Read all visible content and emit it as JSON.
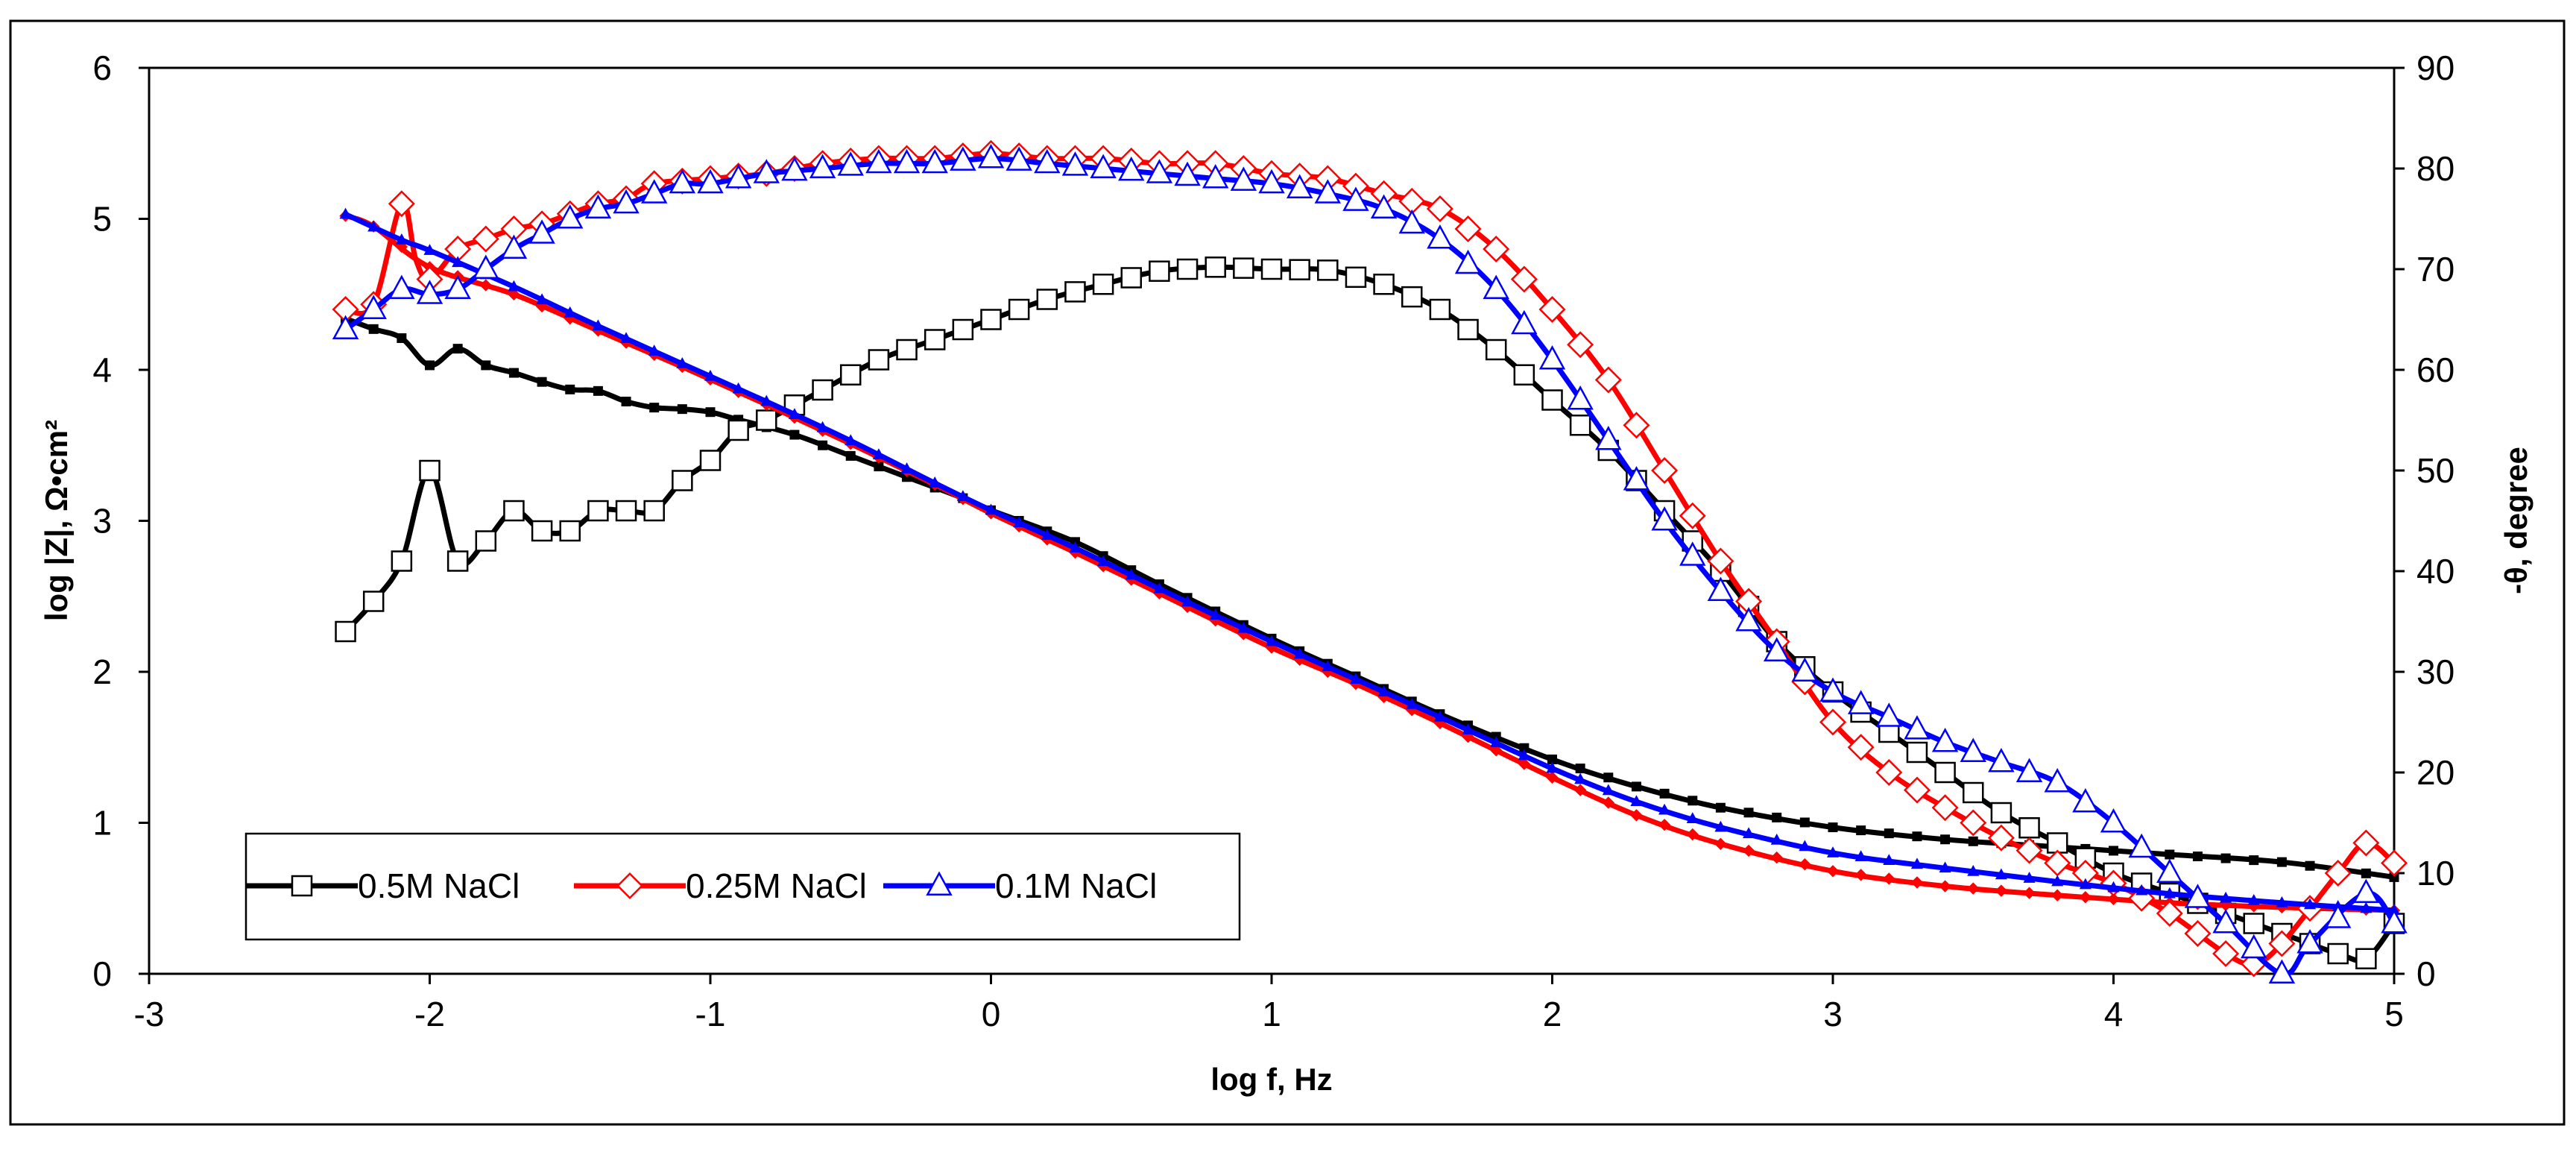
{
  "chart_data": {
    "type": "line",
    "title": "",
    "xlabel": "log f, Hz",
    "ylabel": "log |Z|, Ω•cm²",
    "y2label": "-θ, degree",
    "xlim": [
      -3,
      5
    ],
    "ylim": [
      0,
      6
    ],
    "y2lim": [
      0,
      90
    ],
    "xticks": [
      "-3",
      "-2",
      "-1",
      "0",
      "1",
      "2",
      "3",
      "4",
      "5"
    ],
    "yticks": [
      "0",
      "1",
      "2",
      "3",
      "4",
      "5",
      "6"
    ],
    "y2ticks": [
      "0",
      "10",
      "20",
      "30",
      "40",
      "50",
      "60",
      "70",
      "80",
      "90"
    ],
    "grid": false,
    "legend_position": "bottom-left",
    "series": [
      {
        "name": "0.5M NaCl",
        "color": "#000000",
        "marker": "square",
        "modulus_points": [
          [
            -2.3,
            4.34
          ],
          [
            -2.2,
            4.27
          ],
          [
            -2.1,
            4.21
          ],
          [
            -2.0,
            4.03
          ],
          [
            -1.9,
            4.14
          ],
          [
            -1.8,
            4.03
          ],
          [
            -1.7,
            3.98
          ],
          [
            -1.6,
            3.92
          ],
          [
            -1.5,
            3.87
          ],
          [
            -1.4,
            3.86
          ],
          [
            -1.3,
            3.79
          ],
          [
            -1.2,
            3.75
          ],
          [
            -1.1,
            3.74
          ],
          [
            -1.0,
            3.72
          ],
          [
            -0.9,
            3.67
          ],
          [
            -0.7,
            3.57
          ],
          [
            -0.5,
            3.43
          ],
          [
            -0.3,
            3.29
          ],
          [
            -0.1,
            3.15
          ],
          [
            0.0,
            3.07
          ],
          [
            0.3,
            2.86
          ],
          [
            0.6,
            2.58
          ],
          [
            1.0,
            2.22
          ],
          [
            1.3,
            1.97
          ],
          [
            1.6,
            1.72
          ],
          [
            2.0,
            1.42
          ],
          [
            2.3,
            1.24
          ],
          [
            2.6,
            1.1
          ],
          [
            3.0,
            0.97
          ],
          [
            3.4,
            0.89
          ],
          [
            3.8,
            0.84
          ],
          [
            4.2,
            0.79
          ],
          [
            4.6,
            0.74
          ],
          [
            5.0,
            0.64
          ]
        ],
        "phase_points": [
          [
            -2.3,
            34
          ],
          [
            -2.2,
            37
          ],
          [
            -2.1,
            41
          ],
          [
            -2.0,
            50
          ],
          [
            -1.9,
            41
          ],
          [
            -1.8,
            43
          ],
          [
            -1.7,
            46
          ],
          [
            -1.6,
            44
          ],
          [
            -1.5,
            44
          ],
          [
            -1.4,
            46
          ],
          [
            -1.3,
            46
          ],
          [
            -1.2,
            46
          ],
          [
            -1.1,
            49
          ],
          [
            -1.0,
            51
          ],
          [
            -0.9,
            54
          ],
          [
            -0.8,
            55
          ],
          [
            -0.6,
            58
          ],
          [
            -0.4,
            61
          ],
          [
            -0.2,
            63
          ],
          [
            0.0,
            65
          ],
          [
            0.2,
            67
          ],
          [
            0.4,
            68.5
          ],
          [
            0.6,
            69.8
          ],
          [
            0.8,
            70.2
          ],
          [
            1.0,
            70
          ],
          [
            1.2,
            69.9
          ],
          [
            1.4,
            68.5
          ],
          [
            1.6,
            66
          ],
          [
            1.8,
            62
          ],
          [
            2.0,
            57
          ],
          [
            2.2,
            52
          ],
          [
            2.4,
            46
          ],
          [
            2.6,
            40
          ],
          [
            2.8,
            33
          ],
          [
            3.0,
            28
          ],
          [
            3.2,
            24
          ],
          [
            3.4,
            20
          ],
          [
            3.6,
            16
          ],
          [
            3.8,
            13
          ],
          [
            4.0,
            10
          ],
          [
            4.2,
            8
          ],
          [
            4.4,
            6
          ],
          [
            4.6,
            4
          ],
          [
            4.8,
            2
          ],
          [
            4.9,
            1.5
          ],
          [
            5.0,
            5
          ]
        ]
      },
      {
        "name": "0.25M NaCl",
        "color": "#ff0000",
        "marker": "diamond",
        "modulus_points": [
          [
            -2.3,
            5.02
          ],
          [
            -2.2,
            4.95
          ],
          [
            -2.0,
            4.68
          ],
          [
            -1.7,
            4.5
          ],
          [
            -1.4,
            4.26
          ],
          [
            -1.1,
            4.02
          ],
          [
            -0.8,
            3.77
          ],
          [
            -0.5,
            3.51
          ],
          [
            -0.2,
            3.24
          ],
          [
            0.0,
            3.05
          ],
          [
            0.3,
            2.79
          ],
          [
            0.6,
            2.52
          ],
          [
            1.0,
            2.16
          ],
          [
            1.3,
            1.92
          ],
          [
            1.6,
            1.66
          ],
          [
            2.0,
            1.3
          ],
          [
            2.3,
            1.05
          ],
          [
            2.6,
            0.86
          ],
          [
            3.0,
            0.68
          ],
          [
            3.4,
            0.58
          ],
          [
            3.8,
            0.52
          ],
          [
            4.2,
            0.47
          ],
          [
            4.6,
            0.44
          ],
          [
            5.0,
            0.42
          ]
        ],
        "phase_points": [
          [
            -2.3,
            66
          ],
          [
            -2.2,
            66.5
          ],
          [
            -2.1,
            76.5
          ],
          [
            -2.05,
            71
          ],
          [
            -2.0,
            69
          ],
          [
            -1.9,
            72
          ],
          [
            -1.8,
            73
          ],
          [
            -1.7,
            74
          ],
          [
            -1.6,
            74.5
          ],
          [
            -1.5,
            75.5
          ],
          [
            -1.4,
            76.5
          ],
          [
            -1.3,
            77
          ],
          [
            -1.2,
            78.5
          ],
          [
            -1.0,
            79
          ],
          [
            -0.8,
            79.5
          ],
          [
            -0.6,
            80.5
          ],
          [
            -0.4,
            81
          ],
          [
            -0.2,
            81
          ],
          [
            0.0,
            81.5
          ],
          [
            0.2,
            81
          ],
          [
            0.4,
            81
          ],
          [
            0.6,
            80.5
          ],
          [
            0.8,
            80.5
          ],
          [
            1.0,
            79.5
          ],
          [
            1.2,
            79
          ],
          [
            1.4,
            77.5
          ],
          [
            1.6,
            76
          ],
          [
            1.8,
            72
          ],
          [
            2.0,
            66
          ],
          [
            2.2,
            59
          ],
          [
            2.4,
            50
          ],
          [
            2.6,
            41
          ],
          [
            2.8,
            33
          ],
          [
            3.0,
            25
          ],
          [
            3.2,
            20
          ],
          [
            3.4,
            16.5
          ],
          [
            3.6,
            13.5
          ],
          [
            3.8,
            11
          ],
          [
            4.0,
            9
          ],
          [
            4.2,
            6
          ],
          [
            4.4,
            2
          ],
          [
            4.5,
            1
          ],
          [
            4.6,
            3
          ],
          [
            4.8,
            10
          ],
          [
            4.9,
            13
          ],
          [
            5.0,
            11
          ]
        ]
      },
      {
        "name": "0.1M NaCl",
        "color": "#0000ff",
        "marker": "triangle",
        "modulus_points": [
          [
            -2.3,
            5.03
          ],
          [
            -2.1,
            4.86
          ],
          [
            -2.0,
            4.79
          ],
          [
            -1.7,
            4.55
          ],
          [
            -1.4,
            4.29
          ],
          [
            -1.1,
            4.04
          ],
          [
            -0.8,
            3.79
          ],
          [
            -0.5,
            3.53
          ],
          [
            -0.2,
            3.25
          ],
          [
            0.0,
            3.07
          ],
          [
            0.3,
            2.82
          ],
          [
            0.6,
            2.55
          ],
          [
            1.0,
            2.2
          ],
          [
            1.3,
            1.95
          ],
          [
            1.6,
            1.7
          ],
          [
            2.0,
            1.36
          ],
          [
            2.3,
            1.14
          ],
          [
            2.6,
            0.97
          ],
          [
            3.0,
            0.8
          ],
          [
            3.4,
            0.7
          ],
          [
            3.8,
            0.61
          ],
          [
            4.2,
            0.53
          ],
          [
            4.6,
            0.47
          ],
          [
            5.0,
            0.42
          ]
        ],
        "phase_points": [
          [
            -2.3,
            64
          ],
          [
            -2.2,
            66
          ],
          [
            -2.1,
            68
          ],
          [
            -2.0,
            67.5
          ],
          [
            -1.9,
            68
          ],
          [
            -1.8,
            70
          ],
          [
            -1.7,
            72
          ],
          [
            -1.6,
            73.5
          ],
          [
            -1.5,
            75
          ],
          [
            -1.4,
            76
          ],
          [
            -1.3,
            76.5
          ],
          [
            -1.2,
            77.5
          ],
          [
            -1.1,
            78.5
          ],
          [
            -1.0,
            78.5
          ],
          [
            -0.8,
            79.5
          ],
          [
            -0.6,
            80
          ],
          [
            -0.4,
            80.5
          ],
          [
            -0.2,
            80.5
          ],
          [
            0.0,
            81
          ],
          [
            0.2,
            80.5
          ],
          [
            0.4,
            80
          ],
          [
            0.6,
            79.5
          ],
          [
            0.8,
            79
          ],
          [
            1.0,
            78.5
          ],
          [
            1.2,
            77.5
          ],
          [
            1.4,
            76
          ],
          [
            1.6,
            73
          ],
          [
            1.8,
            68
          ],
          [
            2.0,
            61
          ],
          [
            2.2,
            53
          ],
          [
            2.4,
            45
          ],
          [
            2.6,
            38
          ],
          [
            2.8,
            32
          ],
          [
            3.0,
            28
          ],
          [
            3.2,
            25.5
          ],
          [
            3.4,
            23
          ],
          [
            3.6,
            21
          ],
          [
            3.8,
            19
          ],
          [
            4.0,
            15
          ],
          [
            4.2,
            10
          ],
          [
            4.4,
            5
          ],
          [
            4.6,
            0
          ],
          [
            4.7,
            3
          ],
          [
            4.9,
            8
          ],
          [
            5.0,
            5
          ]
        ]
      }
    ]
  }
}
